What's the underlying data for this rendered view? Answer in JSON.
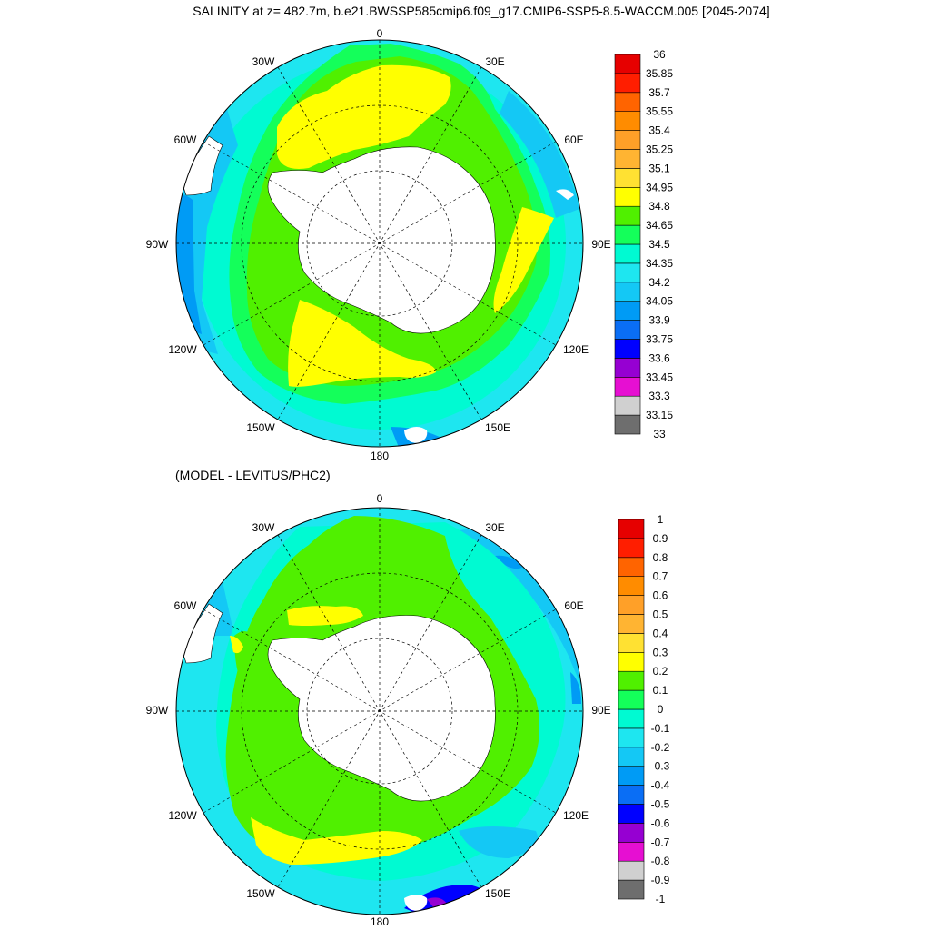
{
  "title": "SALINITY at z= 482.7m, b.e21.BWSSP585cmip6.f09_g17.CMIP6-SSP5-8.5-WACCM.005 [2045-2074]",
  "subtitle": "(MODEL - LEVITUS/PHC2)",
  "longitude_labels": [
    "0",
    "30E",
    "60E",
    "90E",
    "120E",
    "150E",
    "180",
    "150W",
    "120W",
    "90W",
    "60W",
    "30W"
  ],
  "colors": {
    "land": "#ffffff",
    "palette": [
      "#6e6e6e",
      "#d0d0d0",
      "#e60fd2",
      "#9600d2",
      "#0000ff",
      "#0a6ef5",
      "#009bf5",
      "#14c8f5",
      "#1ee6f0",
      "#00fad2",
      "#14ff5a",
      "#50f000",
      "#ffff00",
      "#ffe132",
      "#ffb432",
      "#ffa028",
      "#ff8c00",
      "#ff6400",
      "#ff1e00",
      "#e60000",
      "#be0000"
    ]
  },
  "maps": [
    {
      "name": "salinity",
      "colorbar": {
        "labels": [
          "33",
          "33.15",
          "33.3",
          "33.45",
          "33.6",
          "33.75",
          "33.9",
          "34.05",
          "34.2",
          "34.35",
          "34.5",
          "34.65",
          "34.8",
          "34.95",
          "35.1",
          "35.25",
          "35.4",
          "35.55",
          "35.7",
          "35.85",
          "36"
        ],
        "boxes": [
          "#6e6e6e",
          "#d0d0d0",
          "#e60fd2",
          "#9600d2",
          "#0000ff",
          "#0a6ef5",
          "#009bf5",
          "#14c8f5",
          "#1ee6f0",
          "#00fad2",
          "#14ff5a",
          "#50f000",
          "#ffff00",
          "#ffe132",
          "#ffb432",
          "#ffa028",
          "#ff8c00",
          "#ff6400",
          "#ff1e00",
          "#e60000"
        ]
      }
    },
    {
      "name": "difference",
      "colorbar": {
        "labels": [
          "-1",
          "-0.9",
          "-0.8",
          "-0.7",
          "-0.6",
          "-0.5",
          "-0.4",
          "-0.3",
          "-0.2",
          "-0.1",
          "0",
          "0.1",
          "0.2",
          "0.3",
          "0.4",
          "0.5",
          "0.6",
          "0.7",
          "0.8",
          "0.9",
          "1"
        ],
        "boxes": [
          "#6e6e6e",
          "#d0d0d0",
          "#e60fd2",
          "#9600d2",
          "#0000ff",
          "#0a6ef5",
          "#009bf5",
          "#14c8f5",
          "#1ee6f0",
          "#00fad2",
          "#14ff5a",
          "#50f000",
          "#ffff00",
          "#ffe132",
          "#ffb432",
          "#ffa028",
          "#ff8c00",
          "#ff6400",
          "#ff1e00",
          "#e60000"
        ]
      }
    }
  ]
}
